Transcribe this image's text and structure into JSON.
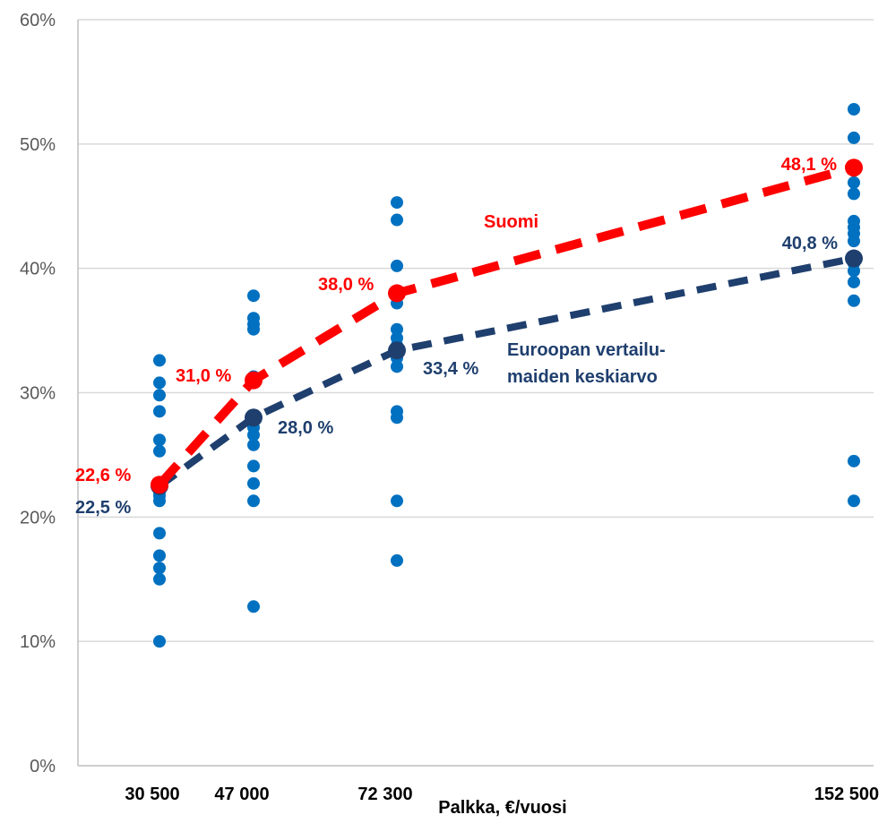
{
  "chart_data": {
    "type": "scatter",
    "xlabel": "Palkka, €/vuosi",
    "ylabel": "",
    "x_ticks": [
      "30 500",
      "47 000",
      "72 300",
      "152 500"
    ],
    "x_values": [
      30500,
      47000,
      72300,
      152500
    ],
    "ylim": [
      0,
      60
    ],
    "y_ticks": [
      "0%",
      "10%",
      "20%",
      "30%",
      "40%",
      "50%",
      "60%"
    ],
    "y_tick_values": [
      0,
      10,
      20,
      30,
      40,
      50,
      60
    ],
    "grid": true,
    "countries_points": [
      {
        "x": 30500,
        "values": [
          32.6,
          30.8,
          29.8,
          28.5,
          26.2,
          25.3,
          22.5,
          22.0,
          21.7,
          21.3,
          18.7,
          16.9,
          15.9,
          15.0,
          10.0
        ]
      },
      {
        "x": 47000,
        "values": [
          37.8,
          36.0,
          35.5,
          35.1,
          31.3,
          30.8,
          28.0,
          27.2,
          26.6,
          25.8,
          24.1,
          22.7,
          21.3,
          12.8
        ]
      },
      {
        "x": 72300,
        "values": [
          45.3,
          43.9,
          40.2,
          37.7,
          37.2,
          35.1,
          34.4,
          33.8,
          33.4,
          32.8,
          32.1,
          28.5,
          28.0,
          21.3,
          16.5
        ]
      },
      {
        "x": 152500,
        "values": [
          52.8,
          50.5,
          48.1,
          46.9,
          46.0,
          43.8,
          43.3,
          42.8,
          42.2,
          40.8,
          40.4,
          39.8,
          38.9,
          37.4,
          24.5,
          21.3
        ]
      }
    ],
    "series": [
      {
        "name": "Suomi",
        "color": "#ff0000",
        "values": [
          22.6,
          31.0,
          38.0,
          48.1
        ],
        "labels": [
          "22,6 %",
          "31,0 %",
          "38,0 %",
          "48,1 %"
        ]
      },
      {
        "name": "Euroopan vertailu-maiden keskiarvo",
        "name_lines": [
          "Euroopan vertailu-",
          "maiden keskiarvo"
        ],
        "color": "#1f3f6e",
        "values": [
          22.5,
          28.0,
          33.4,
          40.8
        ],
        "labels": [
          "22,5 %",
          "28,0 %",
          "33,4 %",
          "40,8 %"
        ]
      }
    ],
    "point_color": "#0070c0"
  }
}
